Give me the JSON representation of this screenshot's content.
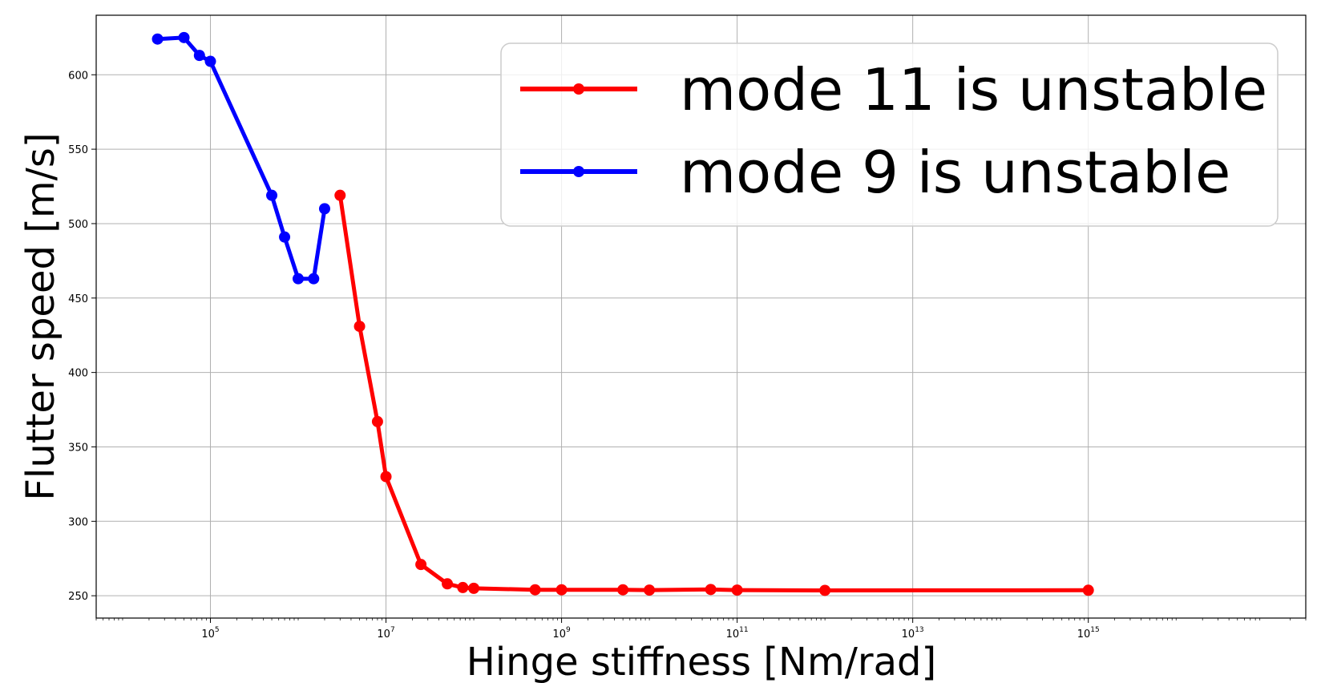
{
  "chart_data": {
    "type": "line",
    "xscale": "log",
    "xlabel": "Hinge stiffness [Nm/rad]",
    "ylabel": "Flutter speed [m/s]",
    "xlim": [
      5000,
      300000000000000000
    ],
    "ylim": [
      235,
      640
    ],
    "grid": true,
    "legend_position": "upper right",
    "x_ticks": [
      {
        "value": 100000,
        "base": "10",
        "exp": "5"
      },
      {
        "value": 10000000,
        "base": "10",
        "exp": "7"
      },
      {
        "value": 1000000000,
        "base": "10",
        "exp": "9"
      },
      {
        "value": 100000000000,
        "base": "10",
        "exp": "11"
      },
      {
        "value": 10000000000000,
        "base": "10",
        "exp": "13"
      },
      {
        "value": 1000000000000000,
        "base": "10",
        "exp": "15"
      }
    ],
    "y_ticks": [
      "250",
      "300",
      "350",
      "400",
      "450",
      "500",
      "550",
      "600"
    ],
    "series": [
      {
        "name": "mode 11 is unstable",
        "color": "#ff0000",
        "x": [
          3000000,
          5000000,
          8000000,
          10000000,
          25000000,
          50000000,
          75000000,
          100000000,
          500000000,
          1000000000,
          5000000000,
          10000000000,
          50000000000,
          100000000000,
          1000000000000,
          1000000000000000
        ],
        "y": [
          519,
          431,
          367,
          330,
          271,
          258,
          255.5,
          255,
          254,
          254,
          254,
          253.8,
          254.2,
          253.8,
          253.6,
          253.7
        ]
      },
      {
        "name": "mode 9 is unstable",
        "color": "#0000ff",
        "x": [
          25000,
          50000,
          75000,
          100000,
          500000,
          700000,
          1000000,
          1500000,
          2000000
        ],
        "y": [
          624,
          625,
          613,
          609,
          519,
          491,
          463,
          463,
          510
        ]
      }
    ]
  }
}
